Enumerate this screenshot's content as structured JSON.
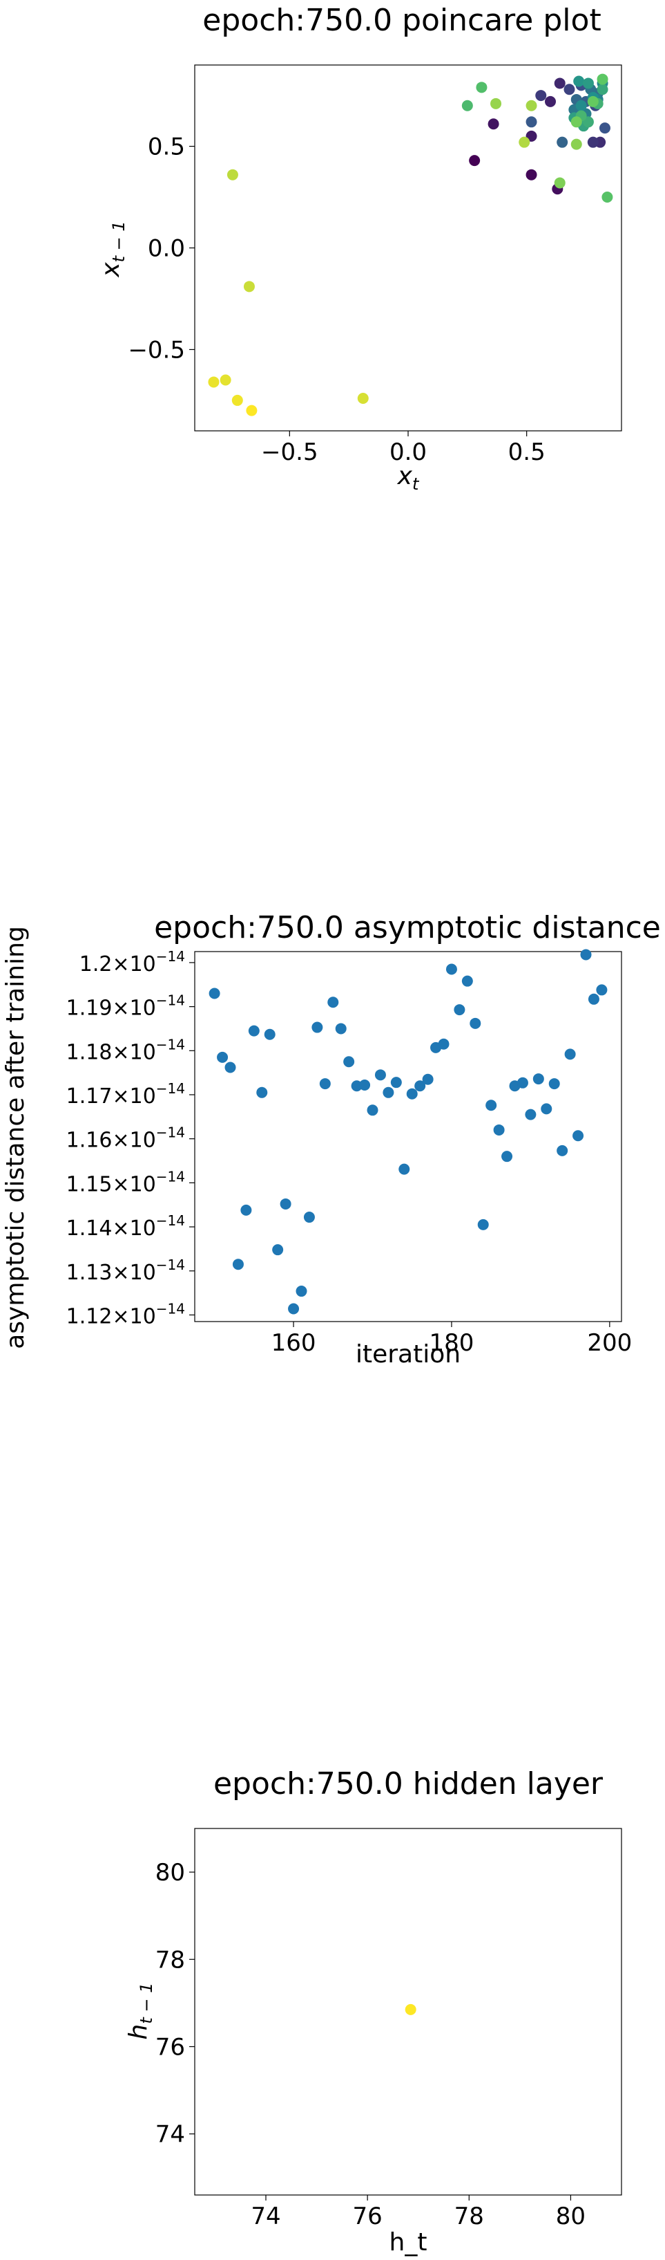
{
  "chart_data": [
    {
      "type": "scatter",
      "title": "epoch:750.0 poincare plot",
      "xlabel": "x",
      "xlabel_sub": "t",
      "ylabel": "x",
      "ylabel_sub": "t − 1",
      "xlim": [
        -0.9,
        0.9
      ],
      "ylim": [
        -0.9,
        0.9
      ],
      "xticks": [
        {
          "v": -0.5,
          "label": "−0.5"
        },
        {
          "v": 0.0,
          "label": "0.0"
        },
        {
          "v": 0.5,
          "label": "0.5"
        }
      ],
      "yticks": [
        {
          "v": 0.5,
          "label": "0.5"
        },
        {
          "v": 0.0,
          "label": "0.0"
        },
        {
          "v": -0.5,
          "label": "−0.5"
        }
      ],
      "colormap": "viridis",
      "points": [
        {
          "x": 0.28,
          "y": 0.43,
          "c": 0.0
        },
        {
          "x": 0.52,
          "y": 0.36,
          "c": 0.02
        },
        {
          "x": 0.63,
          "y": 0.29,
          "c": 0.04
        },
        {
          "x": 0.36,
          "y": 0.61,
          "c": 0.06
        },
        {
          "x": 0.52,
          "y": 0.55,
          "c": 0.08
        },
        {
          "x": 0.6,
          "y": 0.72,
          "c": 0.1
        },
        {
          "x": 0.64,
          "y": 0.81,
          "c": 0.12
        },
        {
          "x": 0.81,
          "y": 0.52,
          "c": 0.14
        },
        {
          "x": 0.78,
          "y": 0.52,
          "c": 0.16
        },
        {
          "x": 0.56,
          "y": 0.75,
          "c": 0.18
        },
        {
          "x": 0.68,
          "y": 0.78,
          "c": 0.2
        },
        {
          "x": 0.79,
          "y": 0.7,
          "c": 0.22
        },
        {
          "x": 0.73,
          "y": 0.8,
          "c": 0.24
        },
        {
          "x": 0.83,
          "y": 0.59,
          "c": 0.26
        },
        {
          "x": 0.52,
          "y": 0.62,
          "c": 0.28
        },
        {
          "x": 0.75,
          "y": 0.72,
          "c": 0.3
        },
        {
          "x": 0.65,
          "y": 0.52,
          "c": 0.32
        },
        {
          "x": 0.71,
          "y": 0.73,
          "c": 0.34
        },
        {
          "x": 0.8,
          "y": 0.76,
          "c": 0.36
        },
        {
          "x": 0.77,
          "y": 0.78,
          "c": 0.38
        },
        {
          "x": 0.7,
          "y": 0.68,
          "c": 0.4
        },
        {
          "x": 0.75,
          "y": 0.66,
          "c": 0.42
        },
        {
          "x": 0.8,
          "y": 0.73,
          "c": 0.44
        },
        {
          "x": 0.82,
          "y": 0.81,
          "c": 0.46
        },
        {
          "x": 0.73,
          "y": 0.7,
          "c": 0.48
        },
        {
          "x": 0.78,
          "y": 0.74,
          "c": 0.5
        },
        {
          "x": 0.72,
          "y": 0.82,
          "c": 0.52
        },
        {
          "x": 0.76,
          "y": 0.81,
          "c": 0.54
        },
        {
          "x": 0.7,
          "y": 0.64,
          "c": 0.56
        },
        {
          "x": 0.74,
          "y": 0.6,
          "c": 0.58
        },
        {
          "x": 0.82,
          "y": 0.78,
          "c": 0.6
        },
        {
          "x": 0.76,
          "y": 0.62,
          "c": 0.62
        },
        {
          "x": 0.8,
          "y": 0.71,
          "c": 0.64
        },
        {
          "x": 0.73,
          "y": 0.65,
          "c": 0.66
        },
        {
          "x": 0.25,
          "y": 0.7,
          "c": 0.68
        },
        {
          "x": 0.31,
          "y": 0.79,
          "c": 0.7
        },
        {
          "x": 0.84,
          "y": 0.25,
          "c": 0.72
        },
        {
          "x": 0.82,
          "y": 0.83,
          "c": 0.74
        },
        {
          "x": 0.78,
          "y": 0.72,
          "c": 0.76
        },
        {
          "x": 0.71,
          "y": 0.62,
          "c": 0.78
        },
        {
          "x": 0.64,
          "y": 0.32,
          "c": 0.8
        },
        {
          "x": 0.71,
          "y": 0.51,
          "c": 0.82
        },
        {
          "x": 0.37,
          "y": 0.71,
          "c": 0.84
        },
        {
          "x": 0.52,
          "y": 0.7,
          "c": 0.86
        },
        {
          "x": 0.49,
          "y": 0.52,
          "c": 0.88
        },
        {
          "x": -0.74,
          "y": 0.36,
          "c": 0.9
        },
        {
          "x": -0.67,
          "y": -0.19,
          "c": 0.92
        },
        {
          "x": -0.19,
          "y": -0.74,
          "c": 0.94
        },
        {
          "x": -0.77,
          "y": -0.65,
          "c": 0.96
        },
        {
          "x": -0.82,
          "y": -0.66,
          "c": 0.97
        },
        {
          "x": -0.72,
          "y": -0.75,
          "c": 0.98
        },
        {
          "x": -0.66,
          "y": -0.8,
          "c": 1.0
        }
      ]
    },
    {
      "type": "scatter",
      "title": "epoch:750.0 asymptotic distance",
      "xlabel": "iteration",
      "ylabel": "asymptotic distance after training",
      "xlim": [
        147.5,
        201.5
      ],
      "ylim": [
        1.1185e-14,
        1.2025e-14
      ],
      "xticks": [
        {
          "v": 160,
          "label": "160"
        },
        {
          "v": 180,
          "label": "180"
        },
        {
          "v": 200,
          "label": "200"
        }
      ],
      "yticks": [
        {
          "v": 1.2e-14,
          "mant": "1.2",
          "exp": "−14"
        },
        {
          "v": 1.19e-14,
          "mant": "1.19",
          "exp": "−14"
        },
        {
          "v": 1.18e-14,
          "mant": "1.18",
          "exp": "−14"
        },
        {
          "v": 1.17e-14,
          "mant": "1.17",
          "exp": "−14"
        },
        {
          "v": 1.16e-14,
          "mant": "1.16",
          "exp": "−14"
        },
        {
          "v": 1.15e-14,
          "mant": "1.15",
          "exp": "−14"
        },
        {
          "v": 1.14e-14,
          "mant": "1.14",
          "exp": "−14"
        },
        {
          "v": 1.13e-14,
          "mant": "1.13",
          "exp": "−14"
        },
        {
          "v": 1.12e-14,
          "mant": "1.12",
          "exp": "−14"
        }
      ],
      "color": "#1f77b4",
      "x": [
        150,
        151,
        152,
        153,
        154,
        155,
        156,
        157,
        158,
        159,
        160,
        161,
        162,
        163,
        164,
        165,
        166,
        167,
        168,
        169,
        170,
        171,
        172,
        173,
        174,
        175,
        176,
        177,
        178,
        179,
        180,
        181,
        182,
        183,
        184,
        185,
        186,
        187,
        188,
        189,
        190,
        191,
        192,
        193,
        194,
        195,
        196,
        197,
        198,
        199
      ],
      "y": [
        1.193e-14,
        1.1785e-14,
        1.1762e-14,
        1.1315e-14,
        1.1438e-14,
        1.1845e-14,
        1.1705e-14,
        1.1837e-14,
        1.1348e-14,
        1.1452e-14,
        1.1214e-14,
        1.1254e-14,
        1.1422e-14,
        1.1853e-14,
        1.1725e-14,
        1.191e-14,
        1.185e-14,
        1.1775e-14,
        1.172e-14,
        1.1722e-14,
        1.1665e-14,
        1.1745e-14,
        1.1705e-14,
        1.1728e-14,
        1.1531e-14,
        1.1702e-14,
        1.172e-14,
        1.1735e-14,
        1.1807e-14,
        1.1815e-14,
        1.1985e-14,
        1.1893e-14,
        1.1958e-14,
        1.1862e-14,
        1.1405e-14,
        1.1676e-14,
        1.162e-14,
        1.156e-14,
        1.172e-14,
        1.1727e-14,
        1.1655e-14,
        1.1736e-14,
        1.1668e-14,
        1.1725e-14,
        1.1573e-14,
        1.1792e-14,
        1.1607e-14,
        1.2018e-14,
        1.1917e-14,
        1.1938e-14
      ]
    },
    {
      "type": "scatter",
      "title": "epoch:750.0 hidden layer",
      "xlabel": "h_t",
      "ylabel": "h",
      "ylabel_sub": "t − 1",
      "xlim": [
        72.6,
        81.0
      ],
      "ylim": [
        72.6,
        81.0
      ],
      "xticks": [
        {
          "v": 74,
          "label": "74"
        },
        {
          "v": 76,
          "label": "76"
        },
        {
          "v": 78,
          "label": "78"
        },
        {
          "v": 80,
          "label": "80"
        }
      ],
      "yticks": [
        {
          "v": 80,
          "label": "80"
        },
        {
          "v": 78,
          "label": "78"
        },
        {
          "v": 76,
          "label": "76"
        },
        {
          "v": 74,
          "label": "74"
        }
      ],
      "color": "#fde725",
      "points": [
        {
          "x": 76.85,
          "y": 76.85
        }
      ]
    }
  ]
}
